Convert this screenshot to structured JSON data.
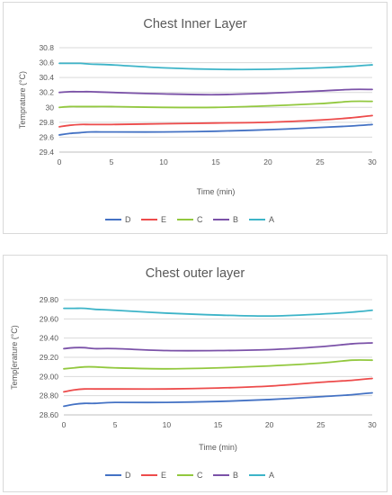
{
  "chart_data": [
    {
      "type": "line",
      "title": "Chest Inner Layer",
      "xlabel": "Time (min)",
      "ylabel": "Temprature (°C)",
      "xlim": [
        0,
        30
      ],
      "ylim": [
        29.4,
        30.8
      ],
      "xticks": [
        0,
        5,
        10,
        15,
        20,
        25,
        30
      ],
      "xtick_labels": [
        "0",
        "5",
        "10",
        "15",
        "20",
        "25",
        "30"
      ],
      "yticks": [
        29.4,
        29.6,
        29.8,
        30.0,
        30.2,
        30.4,
        30.6,
        30.8
      ],
      "ytick_labels": [
        "29.4",
        "29.6",
        "29.8",
        "30",
        "30.2",
        "30.4",
        "30.6",
        "30.8"
      ],
      "grid": true,
      "legend_position": "bottom",
      "series": [
        {
          "name": "D",
          "color": "#4472c4",
          "x": [
            0,
            1,
            2,
            3,
            5,
            10,
            15,
            20,
            25,
            28,
            30
          ],
          "y": [
            29.63,
            29.65,
            29.66,
            29.67,
            29.67,
            29.67,
            29.68,
            29.7,
            29.73,
            29.75,
            29.77
          ]
        },
        {
          "name": "E",
          "color": "#ed4b4b",
          "x": [
            0,
            1,
            2,
            3,
            5,
            10,
            15,
            20,
            25,
            28,
            30
          ],
          "y": [
            29.74,
            29.76,
            29.77,
            29.77,
            29.77,
            29.78,
            29.79,
            29.8,
            29.83,
            29.86,
            29.89
          ]
        },
        {
          "name": "C",
          "color": "#92c83e",
          "x": [
            0,
            1,
            2,
            3,
            5,
            10,
            15,
            20,
            25,
            28,
            30
          ],
          "y": [
            30.0,
            30.01,
            30.01,
            30.01,
            30.01,
            30.0,
            30.0,
            30.02,
            30.05,
            30.08,
            30.08
          ]
        },
        {
          "name": "B",
          "color": "#7b52a8",
          "x": [
            0,
            1,
            2,
            3,
            5,
            10,
            15,
            20,
            25,
            28,
            30
          ],
          "y": [
            30.2,
            30.21,
            30.21,
            30.21,
            30.2,
            30.18,
            30.17,
            30.19,
            30.22,
            30.24,
            30.24
          ]
        },
        {
          "name": "A",
          "color": "#3db4c8",
          "x": [
            0,
            1,
            2,
            3,
            5,
            10,
            15,
            20,
            25,
            28,
            30
          ],
          "y": [
            30.59,
            30.59,
            30.59,
            30.58,
            30.57,
            30.53,
            30.51,
            30.51,
            30.53,
            30.55,
            30.57
          ]
        }
      ]
    },
    {
      "type": "line",
      "title": "Chest outer layer",
      "xlabel": "Time (min)",
      "ylabel": "Temp[erature (°C)",
      "xlim": [
        0,
        30
      ],
      "ylim": [
        28.6,
        29.8
      ],
      "xticks": [
        0,
        5,
        10,
        15,
        20,
        25,
        30
      ],
      "xtick_labels": [
        "0",
        "5",
        "10",
        "15",
        "20",
        "25",
        "30"
      ],
      "yticks": [
        28.6,
        28.8,
        29.0,
        29.2,
        29.4,
        29.6,
        29.8
      ],
      "ytick_labels": [
        "28.60",
        "28.80",
        "29.00",
        "29.20",
        "29.40",
        "29.60",
        "29.80"
      ],
      "grid": true,
      "legend_position": "bottom",
      "series": [
        {
          "name": "D",
          "color": "#4472c4",
          "x": [
            0,
            1,
            2,
            3,
            5,
            10,
            15,
            20,
            25,
            28,
            30
          ],
          "y": [
            28.69,
            28.71,
            28.72,
            28.72,
            28.73,
            28.73,
            28.74,
            28.76,
            28.79,
            28.81,
            28.83
          ]
        },
        {
          "name": "E",
          "color": "#ed4b4b",
          "x": [
            0,
            1,
            2,
            3,
            5,
            10,
            15,
            20,
            25,
            28,
            30
          ],
          "y": [
            28.84,
            28.86,
            28.87,
            28.87,
            28.87,
            28.87,
            28.88,
            28.9,
            28.94,
            28.96,
            28.98
          ]
        },
        {
          "name": "C",
          "color": "#92c83e",
          "x": [
            0,
            1,
            2,
            3,
            5,
            10,
            15,
            20,
            25,
            28,
            30
          ],
          "y": [
            29.08,
            29.09,
            29.1,
            29.1,
            29.09,
            29.08,
            29.09,
            29.11,
            29.14,
            29.17,
            29.17
          ]
        },
        {
          "name": "B",
          "color": "#7b52a8",
          "x": [
            0,
            1,
            2,
            3,
            5,
            10,
            15,
            20,
            25,
            28,
            30
          ],
          "y": [
            29.29,
            29.3,
            29.3,
            29.29,
            29.29,
            29.27,
            29.27,
            29.28,
            29.31,
            29.34,
            29.35
          ]
        },
        {
          "name": "A",
          "color": "#3db4c8",
          "x": [
            0,
            1,
            2,
            3,
            5,
            10,
            15,
            20,
            25,
            28,
            30
          ],
          "y": [
            29.71,
            29.71,
            29.71,
            29.7,
            29.69,
            29.66,
            29.64,
            29.63,
            29.65,
            29.67,
            29.69
          ]
        }
      ]
    }
  ]
}
